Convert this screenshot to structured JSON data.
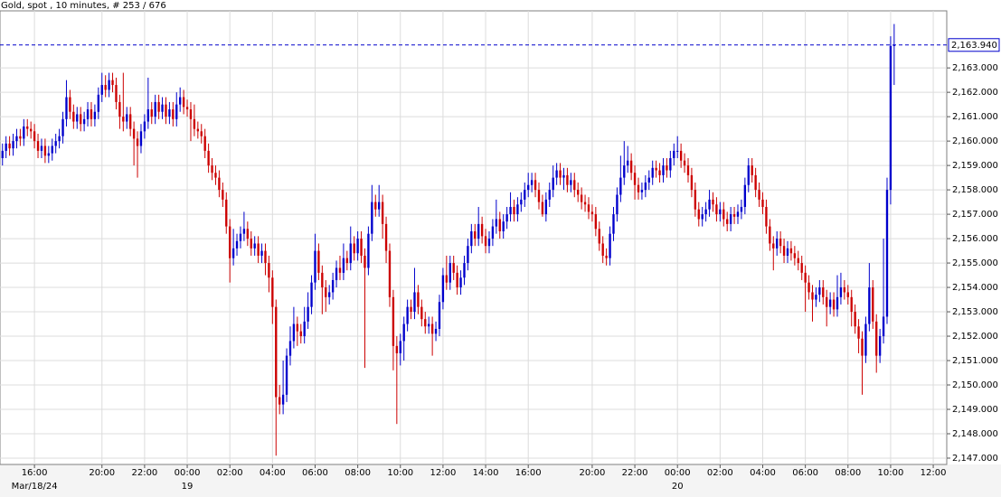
{
  "chart_data": {
    "type": "candlestick",
    "title": "Gold, spot , 10 minutes, # 253 / 676",
    "up_color": "#0000cc",
    "down_color": "#cc0000",
    "grid": true,
    "xlim": [
      -0.7,
      265.8
    ],
    "ylim": [
      2146.74,
      2165.34
    ],
    "yticks": [
      {
        "value": 2147,
        "label": "2,147.000"
      },
      {
        "value": 2148,
        "label": "2,148.000"
      },
      {
        "value": 2149,
        "label": "2,149.000"
      },
      {
        "value": 2150,
        "label": "2,150.000"
      },
      {
        "value": 2151,
        "label": "2,151.000"
      },
      {
        "value": 2152,
        "label": "2,152.000"
      },
      {
        "value": 2153,
        "label": "2,153.000"
      },
      {
        "value": 2154,
        "label": "2,154.000"
      },
      {
        "value": 2155,
        "label": "2,155.000"
      },
      {
        "value": 2156,
        "label": "2,156.000"
      },
      {
        "value": 2157,
        "label": "2,157.000"
      },
      {
        "value": 2158,
        "label": "2,158.000"
      },
      {
        "value": 2159,
        "label": "2,159.000"
      },
      {
        "value": 2160,
        "label": "2,160.000"
      },
      {
        "value": 2161,
        "label": "2,161.000"
      },
      {
        "value": 2162,
        "label": "2,162.000"
      },
      {
        "value": 2163,
        "label": "2,163.000"
      }
    ],
    "xticks": [
      {
        "value": 9,
        "label": "16:00"
      },
      {
        "value": 28,
        "label": "20:00"
      },
      {
        "value": 40,
        "label": "22:00"
      },
      {
        "value": 52,
        "label": "00:00"
      },
      {
        "value": 64,
        "label": "02:00"
      },
      {
        "value": 76,
        "label": "04:00"
      },
      {
        "value": 88,
        "label": "06:00"
      },
      {
        "value": 100,
        "label": "08:00"
      },
      {
        "value": 112,
        "label": "10:00"
      },
      {
        "value": 124,
        "label": "12:00"
      },
      {
        "value": 136,
        "label": "14:00"
      },
      {
        "value": 148,
        "label": "16:00"
      },
      {
        "value": 166,
        "label": "20:00"
      },
      {
        "value": 178,
        "label": "22:00"
      },
      {
        "value": 190,
        "label": "00:00"
      },
      {
        "value": 202,
        "label": "02:00"
      },
      {
        "value": 214,
        "label": "04:00"
      },
      {
        "value": 226,
        "label": "06:00"
      },
      {
        "value": 238,
        "label": "08:00"
      },
      {
        "value": 250,
        "label": "10:00"
      },
      {
        "value": 262,
        "label": "12:00"
      }
    ],
    "date_labels": [
      {
        "value": 9,
        "label": "Mar/18/24"
      },
      {
        "value": 52,
        "label": "19"
      },
      {
        "value": 190,
        "label": "20"
      }
    ],
    "last_price": {
      "value": 2163.94,
      "label": "2,163.940"
    },
    "open": [
      2159.3,
      2159.6,
      2159.9,
      2159.7,
      2160.0,
      2160.2,
      2160.1,
      2160.6,
      2160.5,
      2160.4,
      2160.0,
      2159.6,
      2159.8,
      2159.4,
      2159.5,
      2159.8,
      2160.0,
      2160.2,
      2160.9,
      2161.8,
      2161.2,
      2160.8,
      2161.1,
      2160.7,
      2160.9,
      2161.3,
      2160.9,
      2161.2,
      2161.9,
      2162.3,
      2162.1,
      2162.5,
      2162.3,
      2161.6,
      2161.0,
      2160.8,
      2161.1,
      2160.5,
      2160.1,
      2159.8,
      2160.4,
      2160.8,
      2161.3,
      2161.0,
      2161.6,
      2161.2,
      2161.5,
      2161.0,
      2161.3,
      2160.9,
      2161.5,
      2161.8,
      2161.4,
      2161.3,
      2160.9,
      2160.5,
      2160.4,
      2160.2,
      2159.6,
      2159.0,
      2158.7,
      2158.5,
      2158.0,
      2157.6,
      2156.5,
      2155.2,
      2155.6,
      2155.9,
      2156.2,
      2156.4,
      2156.0,
      2155.6,
      2155.8,
      2155.3,
      2155.5,
      2155.0,
      2154.4,
      2153.2,
      2149.5,
      2149.2,
      2149.6,
      2151.2,
      2151.8,
      2152.5,
      2152.2,
      2152.0,
      2152.6,
      2153.2,
      2154.2,
      2155.5,
      2154.6,
      2154.0,
      2153.6,
      2153.8,
      2154.3,
      2154.8,
      2154.6,
      2155.2,
      2155.0,
      2155.8,
      2155.4,
      2156.0,
      2155.3,
      2154.8,
      2156.2,
      2157.5,
      2157.2,
      2157.5,
      2156.6,
      2155.5,
      2153.6,
      2151.6,
      2151.3,
      2151.8,
      2152.5,
      2153.2,
      2153.0,
      2153.8,
      2153.2,
      2152.7,
      2152.4,
      2152.5,
      2152.1,
      2152.3,
      2153.4,
      2154.5,
      2154.2,
      2155.0,
      2154.6,
      2154.0,
      2154.4,
      2155.0,
      2155.7,
      2156.3,
      2156.0,
      2156.6,
      2156.1,
      2155.7,
      2156.0,
      2156.5,
      2156.8,
      2156.3,
      2156.7,
      2157.0,
      2157.3,
      2157.0,
      2157.4,
      2157.6,
      2158.0,
      2158.2,
      2158.4,
      2158.0,
      2157.5,
      2157.0,
      2157.6,
      2158.0,
      2158.5,
      2158.8,
      2158.5,
      2158.6,
      2158.2,
      2158.4,
      2158.0,
      2157.8,
      2157.5,
      2157.4,
      2157.1,
      2157.0,
      2156.4,
      2155.8,
      2155.3,
      2155.2,
      2156.2,
      2157.0,
      2157.8,
      2158.5,
      2159.0,
      2159.2,
      2158.7,
      2158.2,
      2157.9,
      2158.0,
      2158.3,
      2158.5,
      2158.9,
      2158.8,
      2158.6,
      2159.0,
      2158.8,
      2159.3,
      2159.6,
      2159.6,
      2159.2,
      2159.0,
      2158.6,
      2158.0,
      2157.2,
      2156.8,
      2157.0,
      2157.2,
      2157.6,
      2157.4,
      2157.0,
      2157.2,
      2156.8,
      2156.6,
      2157.0,
      2156.9,
      2157.1,
      2157.3,
      2158.2,
      2159.0,
      2158.6,
      2158.0,
      2157.6,
      2157.3,
      2156.5,
      2155.8,
      2155.6,
      2156.0,
      2155.7,
      2155.3,
      2155.6,
      2155.4,
      2155.2,
      2155.0,
      2154.6,
      2154.2,
      2153.8,
      2153.5,
      2153.7,
      2154.0,
      2153.6,
      2153.2,
      2153.5,
      2153.1,
      2153.6,
      2154.0,
      2153.8,
      2153.6,
      2153.0,
      2152.4,
      2151.9,
      2151.2,
      2152.5,
      2154.0,
      2152.6,
      2151.2,
      2152.0,
      2152.8,
      2158.0,
      2163.9
    ],
    "high": [
      2159.9,
      2160.2,
      2160.2,
      2160.3,
      2160.5,
      2160.5,
      2160.9,
      2160.9,
      2160.8,
      2160.7,
      2160.3,
      2160.1,
      2160.1,
      2159.8,
      2160.1,
      2160.3,
      2160.5,
      2161.2,
      2162.5,
      2162.1,
      2161.5,
      2161.4,
      2161.4,
      2161.2,
      2161.6,
      2161.6,
      2161.5,
      2162.2,
      2162.8,
      2162.7,
      2162.8,
      2162.8,
      2162.6,
      2161.9,
      2162.8,
      2161.4,
      2161.4,
      2160.8,
      2160.4,
      2160.7,
      2161.1,
      2162.6,
      2161.6,
      2161.9,
      2161.9,
      2161.8,
      2161.8,
      2161.6,
      2161.6,
      2162.0,
      2162.2,
      2162.1,
      2161.7,
      2161.6,
      2161.5,
      2160.8,
      2160.7,
      2160.5,
      2159.9,
      2159.3,
      2159.0,
      2158.8,
      2158.3,
      2157.9,
      2156.8,
      2156.4,
      2156.2,
      2156.5,
      2157.1,
      2156.7,
      2156.3,
      2156.1,
      2156.1,
      2155.8,
      2155.8,
      2155.3,
      2154.7,
      2153.5,
      2150.0,
      2151.0,
      2151.5,
      2152.4,
      2153.2,
      2152.8,
      2152.5,
      2153.2,
      2153.8,
      2154.5,
      2156.2,
      2155.8,
      2154.9,
      2154.3,
      2154.1,
      2154.6,
      2155.1,
      2155.3,
      2155.8,
      2155.5,
      2156.5,
      2156.1,
      2156.3,
      2156.3,
      2155.6,
      2156.5,
      2158.2,
      2157.8,
      2158.2,
      2157.8,
      2156.9,
      2155.8,
      2153.9,
      2152.0,
      2152.1,
      2152.8,
      2153.5,
      2153.5,
      2154.8,
      2154.1,
      2153.5,
      2153.0,
      2152.8,
      2152.8,
      2152.6,
      2153.7,
      2154.8,
      2155.3,
      2155.3,
      2155.3,
      2154.9,
      2154.7,
      2155.3,
      2156.0,
      2156.6,
      2156.6,
      2157.3,
      2156.9,
      2156.4,
      2156.3,
      2156.8,
      2157.6,
      2157.1,
      2157.0,
      2157.3,
      2157.9,
      2157.6,
      2157.7,
      2157.9,
      2158.3,
      2158.7,
      2158.7,
      2158.7,
      2158.3,
      2157.8,
      2157.9,
      2158.3,
      2159.0,
      2159.1,
      2159.1,
      2158.9,
      2158.9,
      2158.7,
      2158.7,
      2158.3,
      2158.1,
      2157.8,
      2157.7,
      2157.4,
      2157.3,
      2156.7,
      2156.1,
      2155.6,
      2156.5,
      2157.3,
      2158.1,
      2159.4,
      2160.0,
      2159.8,
      2159.5,
      2159.0,
      2158.5,
      2158.3,
      2158.6,
      2158.8,
      2159.2,
      2159.2,
      2159.1,
      2159.3,
      2159.3,
      2159.6,
      2159.9,
      2160.2,
      2159.9,
      2159.5,
      2159.3,
      2158.9,
      2158.3,
      2157.5,
      2157.3,
      2157.5,
      2158.0,
      2157.9,
      2157.7,
      2157.5,
      2157.5,
      2157.1,
      2157.3,
      2157.3,
      2157.4,
      2157.6,
      2158.5,
      2159.3,
      2159.3,
      2158.9,
      2158.3,
      2157.9,
      2157.6,
      2156.8,
      2156.1,
      2156.3,
      2156.3,
      2156.0,
      2155.9,
      2155.9,
      2155.7,
      2155.5,
      2155.3,
      2154.9,
      2154.5,
      2154.1,
      2154.0,
      2154.3,
      2154.3,
      2153.9,
      2153.8,
      2153.8,
      2154.5,
      2154.6,
      2154.3,
      2154.1,
      2153.9,
      2153.3,
      2152.7,
      2152.2,
      2152.8,
      2155.0,
      2154.3,
      2152.9,
      2152.3,
      2156.0,
      2158.5,
      2164.3,
      2164.8
    ],
    "low": [
      2159.0,
      2159.3,
      2159.4,
      2159.4,
      2159.7,
      2159.8,
      2159.8,
      2160.2,
      2160.1,
      2159.7,
      2159.3,
      2159.3,
      2159.1,
      2159.1,
      2159.2,
      2159.5,
      2159.7,
      2159.9,
      2160.6,
      2160.9,
      2160.5,
      2160.5,
      2160.4,
      2160.4,
      2160.6,
      2160.6,
      2160.6,
      2160.9,
      2161.6,
      2161.8,
      2161.8,
      2162.0,
      2161.3,
      2160.5,
      2160.4,
      2160.5,
      2160.2,
      2159.0,
      2158.5,
      2159.5,
      2160.1,
      2160.5,
      2160.7,
      2160.7,
      2160.9,
      2160.9,
      2160.7,
      2160.7,
      2160.6,
      2160.6,
      2161.2,
      2161.1,
      2161.0,
      2160.0,
      2160.2,
      2160.1,
      2159.9,
      2159.3,
      2158.7,
      2158.4,
      2158.2,
      2157.7,
      2157.3,
      2156.2,
      2154.2,
      2154.9,
      2155.3,
      2155.6,
      2155.9,
      2155.7,
      2155.3,
      2155.3,
      2155.0,
      2155.0,
      2154.5,
      2153.8,
      2152.5,
      2147.1,
      2148.8,
      2148.8,
      2149.3,
      2150.8,
      2151.5,
      2151.6,
      2151.7,
      2151.7,
      2152.3,
      2152.9,
      2153.9,
      2154.3,
      2152.9,
      2153.0,
      2153.3,
      2153.5,
      2154.0,
      2154.3,
      2154.3,
      2154.7,
      2154.7,
      2155.1,
      2155.1,
      2155.0,
      2150.7,
      2154.5,
      2155.9,
      2156.9,
      2156.9,
      2156.0,
      2155.0,
      2153.2,
      2150.6,
      2148.4,
      2150.8,
      2151.0,
      2152.2,
      2152.7,
      2152.7,
      2152.9,
      2152.4,
      2152.1,
      2152.1,
      2151.2,
      2151.8,
      2152.0,
      2153.1,
      2153.9,
      2153.9,
      2154.3,
      2153.7,
      2153.7,
      2154.1,
      2154.7,
      2155.4,
      2155.7,
      2155.7,
      2155.8,
      2155.4,
      2155.4,
      2155.7,
      2156.2,
      2156.0,
      2156.0,
      2156.4,
      2156.7,
      2156.7,
      2156.7,
      2157.1,
      2157.3,
      2157.7,
      2157.9,
      2157.7,
      2157.2,
      2156.9,
      2156.7,
      2157.3,
      2157.7,
      2158.2,
      2158.2,
      2158.0,
      2157.9,
      2157.9,
      2157.7,
      2157.5,
      2157.2,
      2157.1,
      2156.8,
      2156.7,
      2156.1,
      2155.5,
      2155.0,
      2154.9,
      2154.9,
      2155.9,
      2156.7,
      2157.5,
      2158.2,
      2158.7,
      2158.4,
      2157.6,
      2157.6,
      2157.6,
      2157.7,
      2158.0,
      2158.2,
      2158.5,
      2158.3,
      2158.3,
      2158.5,
      2158.5,
      2159.0,
      2159.3,
      2158.9,
      2158.7,
      2158.3,
      2157.7,
      2156.9,
      2156.5,
      2156.5,
      2156.7,
      2156.9,
      2157.1,
      2156.7,
      2156.7,
      2156.5,
      2156.3,
      2156.3,
      2156.6,
      2156.6,
      2156.8,
      2157.0,
      2157.9,
      2158.3,
      2157.7,
      2157.3,
      2157.0,
      2156.2,
      2155.5,
      2154.7,
      2155.3,
      2155.4,
      2155.0,
      2155.0,
      2155.1,
      2154.9,
      2154.7,
      2154.3,
      2153.0,
      2153.5,
      2152.6,
      2153.2,
      2153.4,
      2153.3,
      2152.4,
      2152.9,
      2152.8,
      2152.8,
      2153.3,
      2153.5,
      2153.3,
      2152.4,
      2152.1,
      2151.3,
      2149.6,
      2150.9,
      2152.2,
      2152.3,
      2150.5,
      2150.9,
      2151.7,
      2152.5,
      2157.4,
      2162.3
    ],
    "close": [
      2159.6,
      2159.9,
      2159.7,
      2160.0,
      2160.2,
      2160.1,
      2160.6,
      2160.5,
      2160.4,
      2160.0,
      2159.6,
      2159.8,
      2159.4,
      2159.5,
      2159.8,
      2160.0,
      2160.2,
      2160.9,
      2161.8,
      2161.2,
      2160.8,
      2161.1,
      2160.7,
      2160.9,
      2161.3,
      2160.9,
      2161.2,
      2161.9,
      2162.3,
      2162.1,
      2162.5,
      2162.3,
      2161.6,
      2161.0,
      2160.8,
      2161.1,
      2160.5,
      2160.1,
      2159.8,
      2160.4,
      2160.8,
      2161.3,
      2161.0,
      2161.6,
      2161.2,
      2161.5,
      2161.0,
      2161.3,
      2160.9,
      2161.5,
      2161.8,
      2161.4,
      2161.3,
      2160.9,
      2160.5,
      2160.4,
      2160.2,
      2159.6,
      2159.0,
      2158.7,
      2158.5,
      2158.0,
      2157.6,
      2156.5,
      2155.2,
      2155.6,
      2155.9,
      2156.2,
      2156.4,
      2156.0,
      2155.6,
      2155.8,
      2155.3,
      2155.5,
      2155.0,
      2154.4,
      2153.2,
      2149.5,
      2149.2,
      2149.6,
      2151.2,
      2151.8,
      2152.5,
      2152.2,
      2152.0,
      2152.6,
      2153.2,
      2154.2,
      2155.5,
      2154.6,
      2154.0,
      2153.6,
      2153.8,
      2154.3,
      2154.8,
      2154.6,
      2155.2,
      2155.0,
      2155.8,
      2155.4,
      2156.0,
      2155.3,
      2154.8,
      2156.2,
      2157.5,
      2157.2,
      2157.5,
      2156.6,
      2155.5,
      2153.6,
      2151.6,
      2151.3,
      2151.8,
      2152.5,
      2153.2,
      2153.0,
      2153.8,
      2153.2,
      2152.7,
      2152.4,
      2152.5,
      2152.1,
      2152.3,
      2153.4,
      2154.5,
      2154.2,
      2155.0,
      2154.6,
      2154.0,
      2154.4,
      2155.0,
      2155.7,
      2156.3,
      2156.0,
      2156.6,
      2156.1,
      2155.7,
      2156.0,
      2156.5,
      2156.8,
      2156.3,
      2156.7,
      2157.0,
      2157.3,
      2157.0,
      2157.4,
      2157.6,
      2158.0,
      2158.2,
      2158.4,
      2158.0,
      2157.5,
      2157.0,
      2157.6,
      2158.0,
      2158.5,
      2158.8,
      2158.5,
      2158.6,
      2158.2,
      2158.4,
      2158.0,
      2157.8,
      2157.5,
      2157.4,
      2157.1,
      2157.0,
      2156.4,
      2155.8,
      2155.3,
      2155.2,
      2156.2,
      2157.0,
      2157.8,
      2158.5,
      2159.0,
      2159.2,
      2158.7,
      2158.2,
      2157.9,
      2158.0,
      2158.3,
      2158.5,
      2158.9,
      2158.8,
      2158.6,
      2159.0,
      2158.8,
      2159.3,
      2159.6,
      2159.6,
      2159.2,
      2159.0,
      2158.6,
      2158.0,
      2157.2,
      2156.8,
      2157.0,
      2157.2,
      2157.6,
      2157.4,
      2157.0,
      2157.2,
      2156.8,
      2156.6,
      2157.0,
      2156.9,
      2157.1,
      2157.3,
      2158.2,
      2159.0,
      2158.6,
      2158.0,
      2157.6,
      2157.3,
      2156.5,
      2155.8,
      2155.6,
      2156.0,
      2155.7,
      2155.3,
      2155.6,
      2155.4,
      2155.2,
      2155.0,
      2154.6,
      2154.2,
      2153.8,
      2153.5,
      2153.7,
      2154.0,
      2153.6,
      2153.2,
      2153.5,
      2153.1,
      2153.6,
      2154.0,
      2153.8,
      2153.6,
      2153.0,
      2152.4,
      2151.9,
      2151.2,
      2152.5,
      2154.0,
      2152.6,
      2151.2,
      2152.0,
      2152.8,
      2158.0,
      2163.9,
      2163.94
    ]
  }
}
